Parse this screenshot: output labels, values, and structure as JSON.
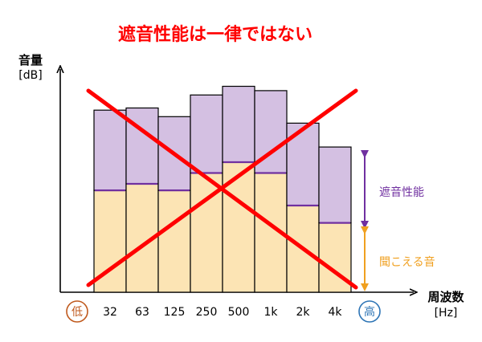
{
  "chart_data": {
    "type": "bar",
    "title": "遮音性能は一律ではない",
    "ylabel": "音量",
    "yunit": "[dB]",
    "xlabel": "周波数",
    "xunit": "[Hz]",
    "x_low_label": "低",
    "x_high_label": "高",
    "categories": [
      "32",
      "63",
      "125",
      "250",
      "500",
      "1k",
      "2k",
      "4k"
    ],
    "ylim": [
      0,
      100
    ],
    "series": [
      {
        "name": "聞こえる音",
        "values": [
          47,
          50,
          47,
          55,
          60,
          55,
          40,
          32
        ]
      },
      {
        "name": "遮音性能",
        "values": [
          37,
          35,
          34,
          36,
          35,
          38,
          38,
          35
        ]
      }
    ],
    "annotations": [
      "遮音性能",
      "聞こえる音"
    ],
    "crossed_out": true
  },
  "colors": {
    "title": "#ff0000",
    "audible_fill": "#fce4b4",
    "insulation_fill": "#d4c0e2",
    "divider": "#7030a0",
    "insulation_label": "#7030a0",
    "audible_label": "#f0a020",
    "cross": "#ff0000",
    "low_circle": "#c05a1e",
    "high_circle": "#2e75b6"
  }
}
